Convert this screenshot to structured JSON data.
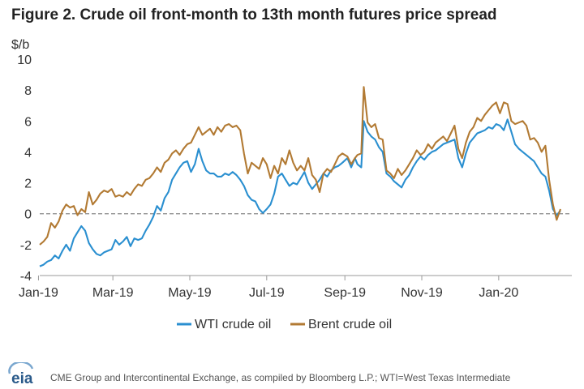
{
  "title": "Figure 2. Crude oil front-month to 13th month futures price spread",
  "source": "CME Group and Intercontinental Exchange, as compiled by Bloomberg L.P.; WTI=West Texas Intermediate",
  "logo_text": "eia",
  "chart_data": {
    "type": "line",
    "ylabel": "$/b",
    "ylim": [
      -4,
      10
    ],
    "yticks": [
      -4,
      -2,
      0,
      2,
      4,
      6,
      8,
      10
    ],
    "xlim": [
      "2019-01-02",
      "2020-02-28"
    ],
    "xticks": [
      {
        "date": "2019-01-01",
        "label": "Jan-19"
      },
      {
        "date": "2019-03-01",
        "label": "Mar-19"
      },
      {
        "date": "2019-05-01",
        "label": "May-19"
      },
      {
        "date": "2019-07-01",
        "label": "Jul-19"
      },
      {
        "date": "2019-09-01",
        "label": "Sep-19"
      },
      {
        "date": "2019-11-01",
        "label": "Nov-19"
      },
      {
        "date": "2020-01-01",
        "label": "Jan-20"
      }
    ],
    "zero_line": "dashed",
    "grid": false,
    "legend": "bottom",
    "series": [
      {
        "name": "WTI crude oil",
        "color": "#2a8fd0",
        "points": [
          [
            "2019-01-02",
            -3.4
          ],
          [
            "2019-01-05",
            -3.3
          ],
          [
            "2019-01-08",
            -3.1
          ],
          [
            "2019-01-11",
            -3.0
          ],
          [
            "2019-01-14",
            -2.7
          ],
          [
            "2019-01-17",
            -2.9
          ],
          [
            "2019-01-20",
            -2.4
          ],
          [
            "2019-01-23",
            -2.0
          ],
          [
            "2019-01-26",
            -2.4
          ],
          [
            "2019-01-29",
            -1.6
          ],
          [
            "2019-02-01",
            -1.2
          ],
          [
            "2019-02-04",
            -0.8
          ],
          [
            "2019-02-07",
            -1.1
          ],
          [
            "2019-02-10",
            -1.9
          ],
          [
            "2019-02-13",
            -2.3
          ],
          [
            "2019-02-16",
            -2.6
          ],
          [
            "2019-02-19",
            -2.7
          ],
          [
            "2019-02-22",
            -2.5
          ],
          [
            "2019-02-25",
            -2.4
          ],
          [
            "2019-02-28",
            -2.3
          ],
          [
            "2019-03-03",
            -1.7
          ],
          [
            "2019-03-06",
            -2.0
          ],
          [
            "2019-03-09",
            -1.8
          ],
          [
            "2019-03-12",
            -1.5
          ],
          [
            "2019-03-15",
            -2.1
          ],
          [
            "2019-03-18",
            -1.6
          ],
          [
            "2019-03-21",
            -1.7
          ],
          [
            "2019-03-24",
            -1.6
          ],
          [
            "2019-03-27",
            -1.1
          ],
          [
            "2019-03-30",
            -0.7
          ],
          [
            "2019-04-02",
            -0.2
          ],
          [
            "2019-04-05",
            0.5
          ],
          [
            "2019-04-08",
            0.2
          ],
          [
            "2019-04-11",
            1.0
          ],
          [
            "2019-04-14",
            1.4
          ],
          [
            "2019-04-17",
            2.2
          ],
          [
            "2019-04-20",
            2.6
          ],
          [
            "2019-04-23",
            3.0
          ],
          [
            "2019-04-26",
            3.3
          ],
          [
            "2019-04-29",
            3.4
          ],
          [
            "2019-05-02",
            2.7
          ],
          [
            "2019-05-05",
            3.2
          ],
          [
            "2019-05-08",
            4.2
          ],
          [
            "2019-05-11",
            3.4
          ],
          [
            "2019-05-14",
            2.8
          ],
          [
            "2019-05-17",
            2.6
          ],
          [
            "2019-05-20",
            2.6
          ],
          [
            "2019-05-23",
            2.4
          ],
          [
            "2019-05-26",
            2.4
          ],
          [
            "2019-05-29",
            2.6
          ],
          [
            "2019-06-01",
            2.5
          ],
          [
            "2019-06-04",
            2.7
          ],
          [
            "2019-06-07",
            2.5
          ],
          [
            "2019-06-10",
            2.2
          ],
          [
            "2019-06-13",
            1.8
          ],
          [
            "2019-06-16",
            1.2
          ],
          [
            "2019-06-19",
            0.9
          ],
          [
            "2019-06-22",
            0.8
          ],
          [
            "2019-06-25",
            0.3
          ],
          [
            "2019-06-28",
            0.05
          ],
          [
            "2019-07-01",
            0.3
          ],
          [
            "2019-07-04",
            0.6
          ],
          [
            "2019-07-07",
            1.3
          ],
          [
            "2019-07-10",
            2.4
          ],
          [
            "2019-07-13",
            2.6
          ],
          [
            "2019-07-16",
            2.2
          ],
          [
            "2019-07-19",
            1.8
          ],
          [
            "2019-07-22",
            2.0
          ],
          [
            "2019-07-25",
            1.9
          ],
          [
            "2019-07-28",
            2.3
          ],
          [
            "2019-07-31",
            2.7
          ],
          [
            "2019-08-03",
            2.0
          ],
          [
            "2019-08-06",
            1.6
          ],
          [
            "2019-08-09",
            1.9
          ],
          [
            "2019-08-12",
            2.2
          ],
          [
            "2019-08-15",
            2.6
          ],
          [
            "2019-08-18",
            2.4
          ],
          [
            "2019-08-21",
            2.8
          ],
          [
            "2019-08-24",
            3.0
          ],
          [
            "2019-08-27",
            3.1
          ],
          [
            "2019-08-30",
            3.3
          ],
          [
            "2019-09-03",
            3.6
          ],
          [
            "2019-09-06",
            3.0
          ],
          [
            "2019-09-09",
            3.6
          ],
          [
            "2019-09-11",
            3.2
          ],
          [
            "2019-09-14",
            3.0
          ],
          [
            "2019-09-16",
            6.0
          ],
          [
            "2019-09-19",
            5.3
          ],
          [
            "2019-09-22",
            5.0
          ],
          [
            "2019-09-25",
            4.8
          ],
          [
            "2019-09-28",
            4.3
          ],
          [
            "2019-10-01",
            4.0
          ],
          [
            "2019-10-04",
            2.6
          ],
          [
            "2019-10-07",
            2.4
          ],
          [
            "2019-10-10",
            2.1
          ],
          [
            "2019-10-13",
            1.9
          ],
          [
            "2019-10-16",
            1.7
          ],
          [
            "2019-10-19",
            2.2
          ],
          [
            "2019-10-22",
            2.5
          ],
          [
            "2019-10-25",
            3.0
          ],
          [
            "2019-10-28",
            3.4
          ],
          [
            "2019-10-31",
            3.7
          ],
          [
            "2019-11-03",
            3.5
          ],
          [
            "2019-11-06",
            3.8
          ],
          [
            "2019-11-09",
            4.0
          ],
          [
            "2019-11-12",
            4.1
          ],
          [
            "2019-11-15",
            4.3
          ],
          [
            "2019-11-18",
            4.5
          ],
          [
            "2019-11-21",
            4.6
          ],
          [
            "2019-11-24",
            4.7
          ],
          [
            "2019-11-27",
            4.8
          ],
          [
            "2019-11-30",
            3.6
          ],
          [
            "2019-12-03",
            3.0
          ],
          [
            "2019-12-06",
            3.9
          ],
          [
            "2019-12-09",
            4.6
          ],
          [
            "2019-12-12",
            4.9
          ],
          [
            "2019-12-15",
            5.2
          ],
          [
            "2019-12-18",
            5.3
          ],
          [
            "2019-12-21",
            5.4
          ],
          [
            "2019-12-24",
            5.6
          ],
          [
            "2019-12-27",
            5.5
          ],
          [
            "2019-12-30",
            5.8
          ],
          [
            "2020-01-02",
            5.7
          ],
          [
            "2020-01-05",
            5.4
          ],
          [
            "2020-01-08",
            6.1
          ],
          [
            "2020-01-11",
            5.3
          ],
          [
            "2020-01-14",
            4.5
          ],
          [
            "2020-01-17",
            4.2
          ],
          [
            "2020-01-20",
            4.0
          ],
          [
            "2020-01-23",
            3.8
          ],
          [
            "2020-01-26",
            3.6
          ],
          [
            "2020-01-29",
            3.4
          ],
          [
            "2020-02-01",
            3.0
          ],
          [
            "2020-02-04",
            2.6
          ],
          [
            "2020-02-07",
            2.4
          ],
          [
            "2020-02-10",
            1.5
          ],
          [
            "2020-02-13",
            0.3
          ],
          [
            "2020-02-16",
            -0.1
          ],
          [
            "2020-02-19",
            0.2
          ]
        ]
      },
      {
        "name": "Brent crude oil",
        "color": "#b27a33",
        "points": [
          [
            "2019-01-02",
            -2.0
          ],
          [
            "2019-01-05",
            -1.8
          ],
          [
            "2019-01-08",
            -1.5
          ],
          [
            "2019-01-11",
            -0.6
          ],
          [
            "2019-01-14",
            -0.9
          ],
          [
            "2019-01-17",
            -0.5
          ],
          [
            "2019-01-20",
            0.2
          ],
          [
            "2019-01-23",
            0.6
          ],
          [
            "2019-01-26",
            0.4
          ],
          [
            "2019-01-29",
            0.5
          ],
          [
            "2019-02-01",
            -0.1
          ],
          [
            "2019-02-04",
            0.3
          ],
          [
            "2019-02-07",
            0.1
          ],
          [
            "2019-02-10",
            1.4
          ],
          [
            "2019-02-13",
            0.6
          ],
          [
            "2019-02-16",
            0.9
          ],
          [
            "2019-02-19",
            1.3
          ],
          [
            "2019-02-22",
            1.5
          ],
          [
            "2019-02-25",
            1.4
          ],
          [
            "2019-02-28",
            1.6
          ],
          [
            "2019-03-03",
            1.1
          ],
          [
            "2019-03-06",
            1.2
          ],
          [
            "2019-03-09",
            1.1
          ],
          [
            "2019-03-12",
            1.4
          ],
          [
            "2019-03-15",
            1.2
          ],
          [
            "2019-03-18",
            1.6
          ],
          [
            "2019-03-21",
            1.9
          ],
          [
            "2019-03-24",
            1.8
          ],
          [
            "2019-03-27",
            2.2
          ],
          [
            "2019-03-30",
            2.3
          ],
          [
            "2019-04-02",
            2.6
          ],
          [
            "2019-04-05",
            3.0
          ],
          [
            "2019-04-08",
            2.7
          ],
          [
            "2019-04-11",
            3.3
          ],
          [
            "2019-04-14",
            3.5
          ],
          [
            "2019-04-17",
            3.9
          ],
          [
            "2019-04-20",
            4.1
          ],
          [
            "2019-04-23",
            3.8
          ],
          [
            "2019-04-26",
            4.2
          ],
          [
            "2019-04-29",
            4.5
          ],
          [
            "2019-05-02",
            4.6
          ],
          [
            "2019-05-05",
            5.1
          ],
          [
            "2019-05-08",
            5.6
          ],
          [
            "2019-05-11",
            5.1
          ],
          [
            "2019-05-14",
            5.3
          ],
          [
            "2019-05-17",
            5.5
          ],
          [
            "2019-05-20",
            5.1
          ],
          [
            "2019-05-23",
            5.6
          ],
          [
            "2019-05-26",
            5.3
          ],
          [
            "2019-05-29",
            5.7
          ],
          [
            "2019-06-01",
            5.8
          ],
          [
            "2019-06-04",
            5.6
          ],
          [
            "2019-06-07",
            5.7
          ],
          [
            "2019-06-10",
            5.4
          ],
          [
            "2019-06-13",
            3.9
          ],
          [
            "2019-06-16",
            2.6
          ],
          [
            "2019-06-19",
            3.3
          ],
          [
            "2019-06-22",
            3.1
          ],
          [
            "2019-06-25",
            2.9
          ],
          [
            "2019-06-28",
            3.6
          ],
          [
            "2019-07-01",
            3.2
          ],
          [
            "2019-07-04",
            2.3
          ],
          [
            "2019-07-07",
            3.1
          ],
          [
            "2019-07-10",
            2.6
          ],
          [
            "2019-07-13",
            3.6
          ],
          [
            "2019-07-16",
            3.2
          ],
          [
            "2019-07-19",
            4.1
          ],
          [
            "2019-07-22",
            3.3
          ],
          [
            "2019-07-25",
            2.8
          ],
          [
            "2019-07-28",
            3.1
          ],
          [
            "2019-07-31",
            2.8
          ],
          [
            "2019-08-03",
            3.6
          ],
          [
            "2019-08-06",
            2.5
          ],
          [
            "2019-08-09",
            2.2
          ],
          [
            "2019-08-12",
            1.4
          ],
          [
            "2019-08-15",
            2.6
          ],
          [
            "2019-08-18",
            2.9
          ],
          [
            "2019-08-21",
            2.7
          ],
          [
            "2019-08-24",
            3.2
          ],
          [
            "2019-08-27",
            3.7
          ],
          [
            "2019-08-30",
            3.9
          ],
          [
            "2019-09-03",
            3.7
          ],
          [
            "2019-09-06",
            3.2
          ],
          [
            "2019-09-09",
            3.6
          ],
          [
            "2019-09-11",
            3.8
          ],
          [
            "2019-09-14",
            3.9
          ],
          [
            "2019-09-16",
            8.2
          ],
          [
            "2019-09-19",
            5.9
          ],
          [
            "2019-09-22",
            5.6
          ],
          [
            "2019-09-25",
            5.8
          ],
          [
            "2019-09-28",
            4.9
          ],
          [
            "2019-10-01",
            4.8
          ],
          [
            "2019-10-04",
            2.8
          ],
          [
            "2019-10-07",
            2.6
          ],
          [
            "2019-10-10",
            2.3
          ],
          [
            "2019-10-13",
            2.9
          ],
          [
            "2019-10-16",
            2.5
          ],
          [
            "2019-10-19",
            2.8
          ],
          [
            "2019-10-22",
            3.2
          ],
          [
            "2019-10-25",
            3.6
          ],
          [
            "2019-10-28",
            4.1
          ],
          [
            "2019-10-31",
            3.8
          ],
          [
            "2019-11-03",
            4.0
          ],
          [
            "2019-11-06",
            4.5
          ],
          [
            "2019-11-09",
            4.2
          ],
          [
            "2019-11-12",
            4.6
          ],
          [
            "2019-11-15",
            4.8
          ],
          [
            "2019-11-18",
            5.0
          ],
          [
            "2019-11-21",
            4.7
          ],
          [
            "2019-11-24",
            5.2
          ],
          [
            "2019-11-27",
            5.7
          ],
          [
            "2019-11-30",
            4.2
          ],
          [
            "2019-12-03",
            3.6
          ],
          [
            "2019-12-06",
            4.6
          ],
          [
            "2019-12-09",
            5.3
          ],
          [
            "2019-12-12",
            5.6
          ],
          [
            "2019-12-15",
            6.2
          ],
          [
            "2019-12-18",
            6.0
          ],
          [
            "2019-12-21",
            6.4
          ],
          [
            "2019-12-24",
            6.7
          ],
          [
            "2019-12-27",
            7.0
          ],
          [
            "2019-12-30",
            7.2
          ],
          [
            "2020-01-02",
            6.5
          ],
          [
            "2020-01-05",
            7.2
          ],
          [
            "2020-01-08",
            7.1
          ],
          [
            "2020-01-11",
            6.0
          ],
          [
            "2020-01-14",
            5.8
          ],
          [
            "2020-01-17",
            5.9
          ],
          [
            "2020-01-20",
            6.0
          ],
          [
            "2020-01-23",
            5.7
          ],
          [
            "2020-01-26",
            4.8
          ],
          [
            "2020-01-29",
            4.9
          ],
          [
            "2020-02-01",
            4.6
          ],
          [
            "2020-02-04",
            4.0
          ],
          [
            "2020-02-07",
            4.4
          ],
          [
            "2020-02-10",
            2.2
          ],
          [
            "2020-02-13",
            0.6
          ],
          [
            "2020-02-16",
            -0.4
          ],
          [
            "2020-02-19",
            0.3
          ]
        ]
      }
    ]
  }
}
